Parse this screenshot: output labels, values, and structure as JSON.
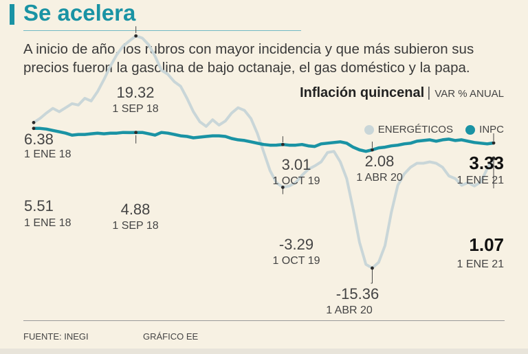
{
  "header": {
    "title": "Se acelera",
    "subtitle": "A inicio de año, los rubros con mayor incidencia y que más subieron sus precios fueron la gasolina de bajo octanaje, el gas doméstico y la papa."
  },
  "colors": {
    "accent": "#1a93a4",
    "energeticos": "#c9d6d8",
    "inpc": "#1a93a4",
    "background": "#f7f1e3"
  },
  "chart_data": {
    "type": "line",
    "title": "Inflación quincenal",
    "unit": "VAR % ANUAL",
    "x_range": [
      "1 ENE 18",
      "1 ENE 21"
    ],
    "ylim": [
      -17,
      21
    ],
    "series": [
      {
        "name": "ENERGÉTICOS",
        "color": "#c9d6d8",
        "x": [
          0,
          0.5,
          1,
          1.5,
          2,
          2.5,
          3,
          3.5,
          4,
          4.5,
          5,
          5.5,
          6,
          6.5,
          7,
          7.5,
          8,
          8.5,
          9,
          9.5,
          10,
          10.5,
          11,
          11.5,
          12,
          12.5,
          13,
          13.5,
          14,
          14.5,
          15,
          15.5,
          16,
          16.5,
          17,
          17.5,
          18,
          18.5,
          19,
          19.5,
          20,
          20.5,
          21,
          21.5,
          22,
          22.5,
          23,
          23.5,
          24,
          24.5,
          25,
          25.5,
          26,
          26.5,
          27,
          27.5,
          28,
          28.5,
          29,
          29.5,
          30,
          30.5,
          31,
          31.5,
          32,
          32.5,
          33,
          33.5,
          34,
          34.5,
          35,
          35.5,
          36
        ],
        "values": [
          6.38,
          7.0,
          7.8,
          8.5,
          8.0,
          8.6,
          9.2,
          9.0,
          10.0,
          9.6,
          11.0,
          12.8,
          14.8,
          16.5,
          17.8,
          18.6,
          19.32,
          19.0,
          18.0,
          16.3,
          14.2,
          13.6,
          12.5,
          11.8,
          10.0,
          8.0,
          6.5,
          5.8,
          6.8,
          6.0,
          6.6,
          7.8,
          8.6,
          8.2,
          7.0,
          4.8,
          2.0,
          -0.8,
          -2.6,
          -3.29,
          -3.1,
          -2.6,
          -1.5,
          -0.6,
          -0.1,
          0.5,
          1.9,
          2.08,
          0.5,
          -2.0,
          -6.5,
          -11.5,
          -14.8,
          -15.36,
          -14.5,
          -12.0,
          -7.0,
          -3.0,
          -1.3,
          -0.3,
          0.3,
          0.3,
          0.5,
          0.3,
          -0.3,
          -1.6,
          -2.0,
          -3.0,
          -2.6,
          -3.1,
          -2.5,
          -0.5,
          1.07
        ],
        "labels": [
          {
            "value": "6.38",
            "date": "1 ENE 18"
          },
          {
            "value": "19.32",
            "date": "1 SEP 18"
          },
          {
            "value": "-3.29",
            "date": "1 OCT 19"
          },
          {
            "value": "-15.36",
            "date": "1 ABR 20"
          },
          {
            "value": "1.07",
            "date": "1 ENE 21"
          }
        ]
      },
      {
        "name": "INPC",
        "color": "#1a93a4",
        "x": [
          0,
          0.5,
          1,
          1.5,
          2,
          2.5,
          3,
          3.5,
          4,
          4.5,
          5,
          5.5,
          6,
          6.5,
          7,
          7.5,
          8,
          8.5,
          9,
          9.5,
          10,
          10.5,
          11,
          11.5,
          12,
          12.5,
          13,
          13.5,
          14,
          14.5,
          15,
          15.5,
          16,
          16.5,
          17,
          17.5,
          18,
          18.5,
          19,
          19.5,
          20,
          20.5,
          21,
          21.5,
          22,
          22.5,
          23,
          23.5,
          24,
          24.5,
          25,
          25.5,
          26,
          26.5,
          27,
          27.5,
          28,
          28.5,
          29,
          29.5,
          30,
          30.5,
          31,
          31.5,
          32,
          32.5,
          33,
          33.5,
          34,
          34.5,
          35,
          35.5,
          36
        ],
        "values": [
          5.51,
          5.5,
          5.4,
          5.2,
          5.0,
          4.8,
          4.5,
          4.6,
          4.6,
          4.7,
          4.8,
          4.7,
          4.8,
          4.8,
          4.9,
          4.88,
          4.9,
          4.9,
          4.7,
          4.5,
          4.9,
          4.8,
          4.6,
          4.4,
          4.3,
          4.1,
          4.2,
          4.3,
          4.4,
          4.4,
          4.3,
          4.0,
          3.8,
          3.7,
          3.5,
          3.3,
          3.1,
          3.0,
          3.01,
          3.1,
          3.0,
          3.0,
          3.1,
          2.9,
          2.8,
          3.2,
          3.3,
          3.4,
          3.5,
          3.3,
          2.7,
          2.3,
          2.08,
          2.3,
          2.6,
          2.7,
          2.9,
          3.0,
          3.2,
          3.3,
          3.6,
          3.7,
          3.8,
          3.6,
          3.8,
          3.9,
          3.7,
          3.8,
          3.6,
          3.4,
          3.3,
          3.2,
          3.33
        ],
        "labels": [
          {
            "value": "5.51",
            "date": "1 ENE 18"
          },
          {
            "value": "4.88",
            "date": "1 SEP 18"
          },
          {
            "value": "3.01",
            "date": "1 OCT 19"
          },
          {
            "value": "2.08",
            "date": "1 ABR 20"
          },
          {
            "value": "3.33",
            "date": "1 ENE 21"
          }
        ]
      }
    ]
  },
  "footer": {
    "source": "FUENTE: INEGI",
    "credit": "GRÁFICO EE"
  }
}
